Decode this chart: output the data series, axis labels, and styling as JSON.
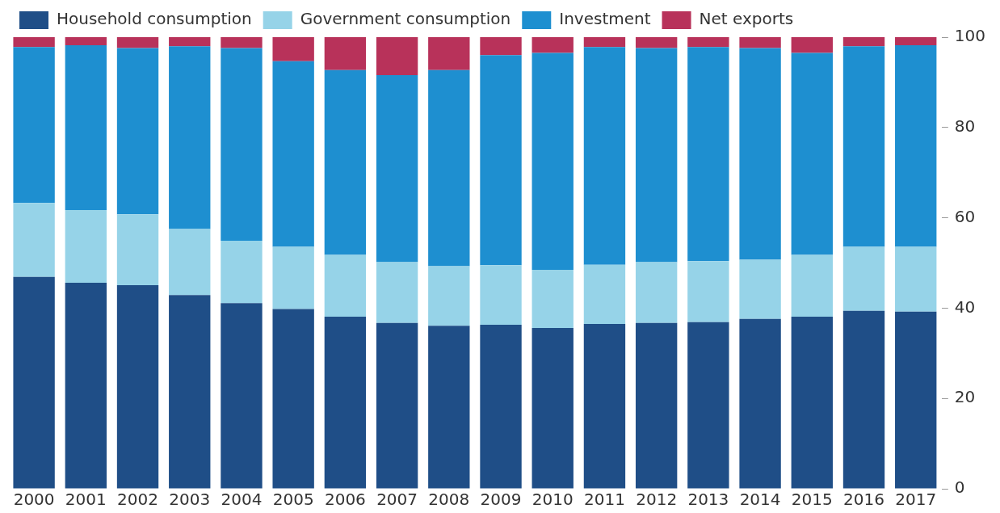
{
  "chart_data": {
    "type": "bar",
    "stacked": true,
    "legend": "top left",
    "grid": false,
    "categories": [
      "2000",
      "2001",
      "2002",
      "2003",
      "2004",
      "2005",
      "2006",
      "2007",
      "2008",
      "2009",
      "2010",
      "2011",
      "2012",
      "2013",
      "2014",
      "2015",
      "2016",
      "2017"
    ],
    "ylim": [
      0,
      100
    ],
    "yticks": [
      0,
      20,
      40,
      60,
      80,
      100
    ],
    "series": [
      {
        "name": "Household consumption",
        "color": "#1f4e87",
        "values": [
          46.9,
          45.6,
          45.1,
          42.9,
          41.1,
          39.8,
          38.1,
          36.7,
          36.1,
          36.3,
          35.6,
          36.5,
          36.7,
          36.9,
          37.6,
          38.1,
          39.4,
          39.2
        ]
      },
      {
        "name": "Government consumption",
        "color": "#96d3e8",
        "values": [
          16.4,
          16.1,
          15.7,
          14.6,
          13.8,
          13.8,
          13.7,
          13.5,
          13.2,
          13.2,
          12.9,
          13.1,
          13.5,
          13.5,
          13.1,
          13.7,
          14.2,
          14.4
        ]
      },
      {
        "name": "Investment",
        "color": "#1e8fd0",
        "values": [
          34.5,
          36.5,
          36.8,
          40.5,
          42.7,
          41.1,
          40.9,
          41.4,
          43.4,
          46.5,
          48.0,
          48.2,
          47.4,
          47.4,
          46.9,
          44.7,
          44.4,
          44.6
        ]
      },
      {
        "name": "Net exports",
        "color": "#b8325a",
        "values": [
          2.2,
          1.8,
          2.4,
          2.0,
          2.4,
          5.3,
          7.3,
          8.4,
          7.3,
          4.0,
          3.5,
          2.2,
          2.4,
          2.2,
          2.4,
          3.5,
          2.0,
          1.8
        ]
      }
    ]
  }
}
